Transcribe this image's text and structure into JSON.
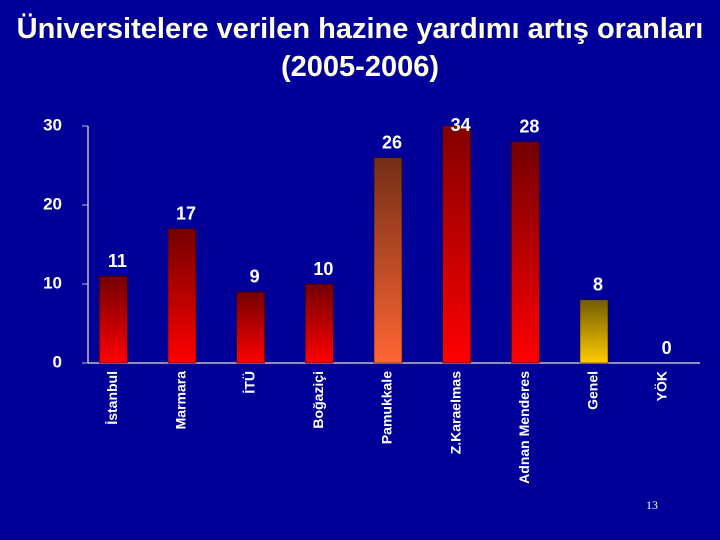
{
  "chart_data": {
    "type": "bar",
    "title": "Üniversitelere verilen hazine yardımı artış oranları (2005-2006)",
    "categories": [
      "İstanbul",
      "Marmara",
      "İTÜ",
      "Boğaziçi",
      "Pamukkale",
      "Z.Karaelmas",
      "Adnan Menderes",
      "Genel",
      "YÖK"
    ],
    "values": [
      11,
      17,
      9,
      10,
      26,
      34,
      28,
      8,
      0
    ],
    "colors": [
      "#ff0000",
      "#ff0000",
      "#ff0000",
      "#ff0000",
      "#ff6633",
      "#ff0000",
      "#ff0000",
      "#ffcc00",
      "#ff0000"
    ],
    "ylim": [
      0,
      30
    ],
    "yticks": [
      0,
      10,
      20,
      30
    ],
    "grid": false
  },
  "slide_number": "13"
}
